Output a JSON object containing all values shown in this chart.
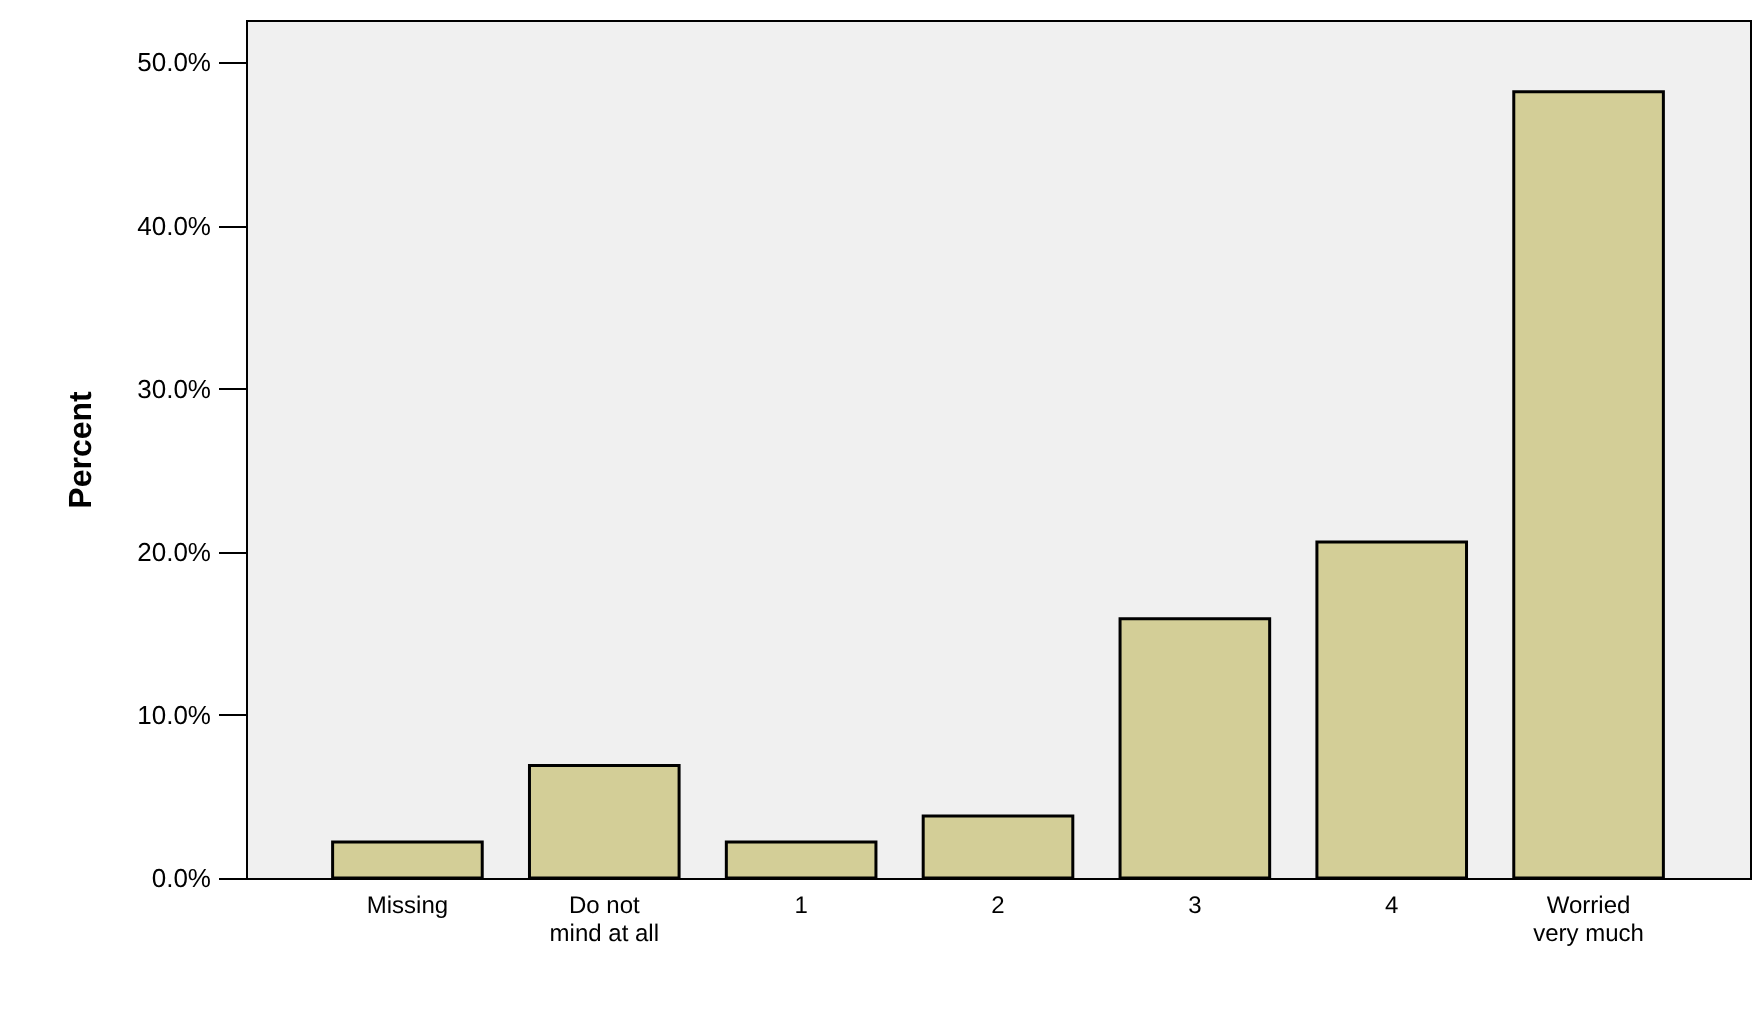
{
  "chart_data": {
    "type": "bar",
    "ylabel": "Percent",
    "categories": [
      "Missing",
      "Do not\nmind at all",
      "1",
      "2",
      "3",
      "4",
      "Worried\nvery much"
    ],
    "values": [
      2.2,
      6.9,
      2.2,
      3.8,
      15.9,
      20.6,
      48.2
    ],
    "color": "#d3ce97",
    "ylim": [
      0,
      52.6
    ],
    "yticks": [
      {
        "value": 0,
        "label": "0.0%"
      },
      {
        "value": 10,
        "label": "10.0%"
      },
      {
        "value": 20,
        "label": "20.0%"
      },
      {
        "value": 30,
        "label": "30.0%"
      },
      {
        "value": 40,
        "label": "40.0%"
      },
      {
        "value": 50,
        "label": "50.0%"
      }
    ],
    "grid": false
  }
}
